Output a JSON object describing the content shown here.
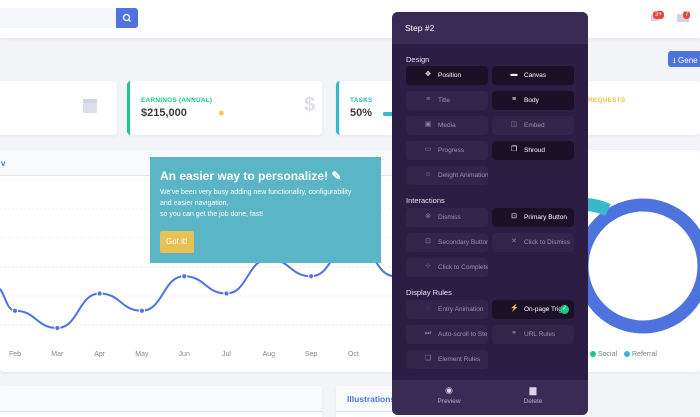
{
  "topbar": {
    "search_placeholder": "",
    "alerts_badge": "3+",
    "messages_badge": "7"
  },
  "header": {
    "generate_label": "Gene"
  },
  "cards": [
    {
      "label": "EARNINGS (ANNUAL)",
      "value": "$215,000",
      "accent": "#1cc88a"
    },
    {
      "label": "TASKS",
      "value": "50%",
      "accent": "#36b9cc"
    },
    {
      "label": "REQUESTS",
      "value": "",
      "accent": "#f6c23e"
    }
  ],
  "chart_panel": {
    "header_fragment": "v"
  },
  "chart_data": {
    "type": "line",
    "categories": [
      "Feb",
      "Mar",
      "Apr",
      "May",
      "Jun",
      "Jul",
      "Aug",
      "Sep",
      "Oct"
    ],
    "series": [
      {
        "values": [
          5000,
          0,
          10000,
          5000,
          15000,
          10000,
          20000,
          15000,
          25000
        ]
      }
    ]
  },
  "donut": {
    "legend": [
      {
        "label": "Social",
        "color": "#1cc88a"
      },
      {
        "label": "Referral",
        "color": "#36b9cc"
      }
    ]
  },
  "bottom_panel": {
    "title": "Illustrations"
  },
  "tooltip": {
    "title": "An easier way to personalize! ✎",
    "line1": "We've been very busy adding new functionality, configurability",
    "line2": "and easier navigation,",
    "line3": "so you can get the job done, fast!",
    "button": "Got it!"
  },
  "step": {
    "title": "Step #2",
    "sections": {
      "design": "Design",
      "interactions": "Interactions",
      "display": "Display Rules"
    },
    "design": [
      {
        "label": "Position",
        "icon": "move-icon",
        "glyph": "✥",
        "active": true
      },
      {
        "label": "Canvas",
        "icon": "canvas-icon",
        "glyph": "▬",
        "active": true
      },
      {
        "label": "Title",
        "icon": "title-icon",
        "glyph": "≡",
        "active": false
      },
      {
        "label": "Body",
        "icon": "body-icon",
        "glyph": "≡",
        "active": true
      },
      {
        "label": "Media",
        "icon": "image-icon",
        "glyph": "▣",
        "active": false
      },
      {
        "label": "Embed",
        "icon": "embed-icon",
        "glyph": "◫",
        "active": false
      },
      {
        "label": "Progress",
        "icon": "progress-icon",
        "glyph": "▭",
        "active": false
      },
      {
        "label": "Shroud",
        "icon": "shroud-icon",
        "glyph": "❐",
        "active": true
      },
      {
        "label": "Delight Animation",
        "icon": "delight-icon",
        "glyph": "☺",
        "active": false
      }
    ],
    "interactions": [
      {
        "label": "Dismiss",
        "icon": "dismiss-icon",
        "glyph": "⊗",
        "active": false
      },
      {
        "label": "Primary Button",
        "icon": "primary-button-icon",
        "glyph": "⊡",
        "active": true
      },
      {
        "label": "Secondary Button",
        "icon": "secondary-button-icon",
        "glyph": "⊡",
        "active": false
      },
      {
        "label": "Click to Dismiss",
        "icon": "x-icon",
        "glyph": "✕",
        "active": false
      },
      {
        "label": "Click to Complete",
        "icon": "click-icon",
        "glyph": "⊹",
        "active": false
      }
    ],
    "display": [
      {
        "label": "Entry Animation",
        "icon": "entry-icon",
        "glyph": "◌",
        "active": false
      },
      {
        "label": "On-page Trig...",
        "icon": "bolt-icon",
        "glyph": "⚡",
        "active": true
      },
      {
        "label": "Auto-scroll to Step",
        "icon": "scroll-icon",
        "glyph": "⏭",
        "active": false
      },
      {
        "label": "URL Rules",
        "icon": "link-icon",
        "glyph": "⚭",
        "active": false
      },
      {
        "label": "Element Rules",
        "icon": "element-icon",
        "glyph": "❏",
        "active": false
      }
    ],
    "footer": {
      "preview": "Preview",
      "delete": "Delete"
    }
  }
}
